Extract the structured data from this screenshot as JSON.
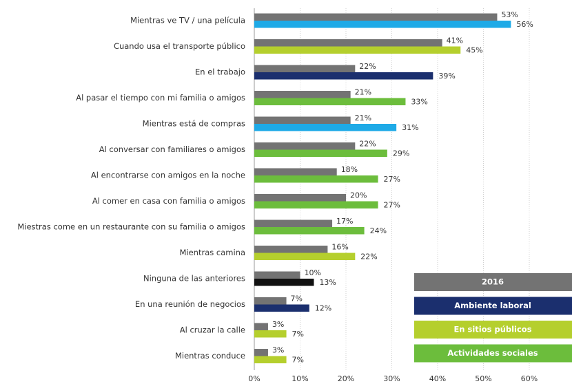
{
  "chart_data": {
    "type": "bar",
    "orientation": "horizontal",
    "categories": [
      "Mientras ve TV / una película",
      "Cuando usa el transporte público",
      "En el trabajo",
      "Al pasar el tiempo con mi familia o amigos",
      "Mientras está de compras",
      "Al conversar con familiares o amigos",
      "Al encontrarse con amigos en la noche",
      "Al comer en casa con familia o amigos",
      "Miestras come en un restaurante con su familia o amigos",
      "Mientras camina",
      "Ninguna de las anteriores",
      "En una reunión de negocios",
      "Al cruzar la calle",
      "Mientras conduce"
    ],
    "series": [
      {
        "name": "2016",
        "color": "#737373",
        "values": [
          53,
          41,
          22,
          21,
          21,
          22,
          18,
          20,
          17,
          16,
          10,
          7,
          3,
          3
        ],
        "value_labels": [
          "53%",
          "41%",
          "22%",
          "21%",
          "21%",
          "22%",
          "18%",
          "20%",
          "17%",
          "16%",
          "10%",
          "7%",
          "3%",
          "3%"
        ]
      },
      {
        "colors": [
          "#1eaae7",
          "#b5cf2d",
          "#1b2f6e",
          "#6cbd3c",
          "#1eaae7",
          "#6cbd3c",
          "#6cbd3c",
          "#6cbd3c",
          "#6cbd3c",
          "#b5cf2d",
          "#111111",
          "#1b2f6e",
          "#b5cf2d",
          "#b5cf2d"
        ],
        "values": [
          56,
          45,
          39,
          33,
          31,
          29,
          27,
          27,
          24,
          22,
          13,
          12,
          7,
          7
        ],
        "value_labels": [
          "56%",
          "45%",
          "39%",
          "33%",
          "31%",
          "29%",
          "27%",
          "27%",
          "24%",
          "22%",
          "13%",
          "12%",
          "7%",
          "7%"
        ]
      }
    ],
    "legend": [
      {
        "name": "2016",
        "color": "#737373"
      },
      {
        "name": "Ambiente laboral",
        "color": "#1b2f6e"
      },
      {
        "name": "En sitios públicos",
        "color": "#b5cf2d"
      },
      {
        "name": "Actividades sociales",
        "color": "#6cbd3c"
      }
    ],
    "xlim": [
      0,
      60
    ],
    "xticks": [
      {
        "value": 0,
        "label": "0%"
      },
      {
        "value": 10,
        "label": "10%"
      },
      {
        "value": 20,
        "label": "20%"
      },
      {
        "value": 30,
        "label": "30%"
      },
      {
        "value": 40,
        "label": "40%"
      },
      {
        "value": 50,
        "label": "50%"
      },
      {
        "value": 60,
        "label": "60%"
      }
    ],
    "grid": true
  }
}
